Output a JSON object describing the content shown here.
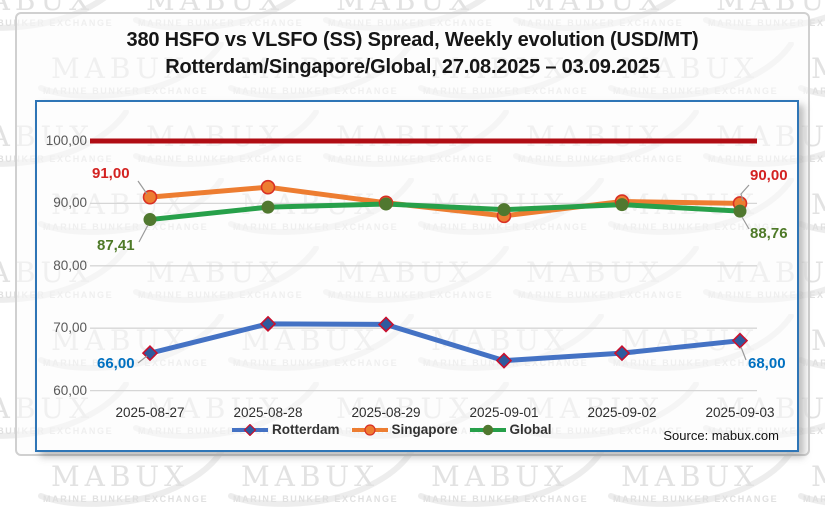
{
  "title": {
    "line1": "380 HSFO vs VLSFO (SS) Spread, Weekly evolution (USD/MT)",
    "line2": "Rotterdam/Singapore/Global, 27.08.2025 – 03.09.2025"
  },
  "watermark": {
    "brand": "MABUX",
    "tagline": "MARINE BUNKER EXCHANGE"
  },
  "source_label": "Source: mabux.com",
  "colors": {
    "panel_border": "#2E75B6",
    "gridline": "#d6d6d6",
    "ref_line_red": "#B00D14",
    "axis_label_gray": "#595959",
    "callout_red": "#D32221",
    "callout_green": "#4E7A28",
    "callout_blue": "#0070C0"
  },
  "chart_data": {
    "type": "line",
    "title": "380 HSFO vs VLSFO (SS) Spread, Weekly evolution (USD/MT) Rotterdam/Singapore/Global, 27.08.2025 – 03.09.2025",
    "xlabel": "",
    "ylabel": "",
    "ylim": [
      60,
      100
    ],
    "grid": true,
    "legend_position": "bottom",
    "categories": [
      "2025-08-27",
      "2025-08-28",
      "2025-08-29",
      "2025-09-01",
      "2025-09-02",
      "2025-09-03"
    ],
    "yticks": [
      {
        "value": 100,
        "label": "100,00"
      },
      {
        "value": 90,
        "label": "90,00"
      },
      {
        "value": 80,
        "label": "80,00"
      },
      {
        "value": 70,
        "label": "70,00"
      },
      {
        "value": 60,
        "label": "60,00"
      }
    ],
    "ref_line": {
      "value": 100,
      "color": "#B00D14"
    },
    "series": [
      {
        "name": "Rotterdam",
        "color": "#4472C4",
        "marker": "diamond",
        "marker_color": "#2E5B9E",
        "marker_outline": "#C8102E",
        "values": [
          66.0,
          70.7,
          70.6,
          64.8,
          66.0,
          68.0
        ]
      },
      {
        "name": "Singapore",
        "color": "#ED7D31",
        "marker": "circle",
        "marker_color": "#ED7D31",
        "marker_outline": "#D93025",
        "values": [
          91.0,
          92.6,
          90.1,
          88.0,
          90.3,
          90.0
        ]
      },
      {
        "name": "Global",
        "color": "#27A04A",
        "marker": "circle",
        "marker_color": "#50782F",
        "marker_outline": "none",
        "values": [
          87.41,
          89.4,
          89.9,
          89.0,
          89.8,
          88.76
        ]
      }
    ],
    "callouts": [
      {
        "text": "91,00",
        "series": "Singapore",
        "point": 0,
        "color": "#D32221"
      },
      {
        "text": "87,41",
        "series": "Global",
        "point": 0,
        "color": "#4E7A28"
      },
      {
        "text": "66,00",
        "series": "Rotterdam",
        "point": 0,
        "color": "#0070C0"
      },
      {
        "text": "90,00",
        "series": "Singapore",
        "point": 5,
        "color": "#D32221"
      },
      {
        "text": "88,76",
        "series": "Global",
        "point": 5,
        "color": "#4E7A28"
      },
      {
        "text": "68,00",
        "series": "Rotterdam",
        "point": 5,
        "color": "#0070C0"
      }
    ]
  }
}
